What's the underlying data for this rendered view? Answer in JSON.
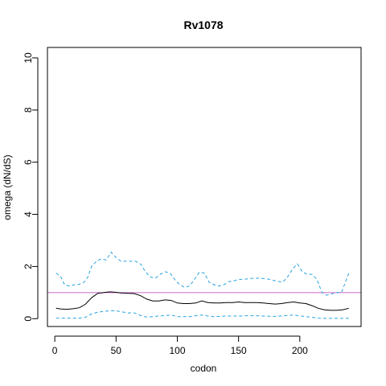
{
  "chart_data": {
    "type": "line",
    "title": "Rv1078",
    "xlabel": "codon",
    "ylabel": "omega (dN/dS)",
    "xlim": [
      -6,
      250
    ],
    "ylim": [
      -0.3,
      10.4
    ],
    "xticks": [
      0,
      50,
      100,
      150,
      200
    ],
    "yticks": [
      0,
      2,
      4,
      6,
      8,
      10
    ],
    "reference_line": {
      "y": 1,
      "color": "#cc66cc"
    },
    "series": [
      {
        "style": "solid",
        "color": "#000000",
        "x": [
          1,
          5,
          10,
          15,
          20,
          25,
          30,
          35,
          40,
          45,
          50,
          55,
          60,
          65,
          70,
          75,
          80,
          85,
          90,
          95,
          100,
          105,
          110,
          115,
          120,
          125,
          130,
          135,
          140,
          145,
          150,
          155,
          160,
          165,
          170,
          175,
          180,
          185,
          190,
          195,
          200,
          205,
          210,
          215,
          220,
          225,
          230,
          235,
          240
        ],
        "y": [
          0.4,
          0.37,
          0.36,
          0.38,
          0.42,
          0.55,
          0.8,
          0.97,
          1.0,
          1.03,
          1.01,
          0.98,
          0.97,
          0.96,
          0.88,
          0.75,
          0.68,
          0.68,
          0.72,
          0.7,
          0.6,
          0.58,
          0.58,
          0.6,
          0.68,
          0.62,
          0.6,
          0.6,
          0.62,
          0.62,
          0.64,
          0.62,
          0.62,
          0.62,
          0.6,
          0.58,
          0.56,
          0.58,
          0.62,
          0.64,
          0.6,
          0.58,
          0.5,
          0.4,
          0.34,
          0.32,
          0.32,
          0.34,
          0.4
        ]
      },
      {
        "style": "dashed",
        "color": "#29a3e0",
        "x": [
          1,
          5,
          8,
          12,
          16,
          20,
          24,
          27,
          30,
          34,
          38,
          42,
          46,
          50,
          54,
          58,
          62,
          66,
          70,
          74,
          78,
          82,
          86,
          90,
          94,
          98,
          102,
          106,
          110,
          114,
          118,
          122,
          126,
          130,
          134,
          138,
          142,
          146,
          150,
          156,
          162,
          168,
          174,
          180,
          186,
          190,
          194,
          198,
          202,
          206,
          210,
          214,
          218,
          222,
          226,
          230,
          234,
          238,
          240
        ],
        "y": [
          1.75,
          1.6,
          1.3,
          1.25,
          1.3,
          1.32,
          1.4,
          1.6,
          2.0,
          2.2,
          2.3,
          2.25,
          2.55,
          2.35,
          2.2,
          2.2,
          2.2,
          2.2,
          2.1,
          1.8,
          1.6,
          1.55,
          1.7,
          1.8,
          1.75,
          1.5,
          1.3,
          1.2,
          1.25,
          1.5,
          1.78,
          1.75,
          1.4,
          1.3,
          1.25,
          1.3,
          1.42,
          1.45,
          1.5,
          1.52,
          1.55,
          1.55,
          1.52,
          1.45,
          1.4,
          1.6,
          1.9,
          2.1,
          1.8,
          1.7,
          1.7,
          1.5,
          1.0,
          0.9,
          0.95,
          1.0,
          1.0,
          1.5,
          1.75
        ]
      },
      {
        "style": "dashed",
        "color": "#29a3e0",
        "x": [
          1,
          10,
          20,
          25,
          30,
          35,
          40,
          45,
          50,
          55,
          60,
          65,
          70,
          75,
          80,
          85,
          90,
          95,
          100,
          110,
          120,
          125,
          130,
          140,
          150,
          160,
          170,
          180,
          190,
          195,
          200,
          205,
          210,
          215,
          220,
          230,
          240
        ],
        "y": [
          0.02,
          0.02,
          0.02,
          0.05,
          0.18,
          0.25,
          0.28,
          0.3,
          0.3,
          0.26,
          0.22,
          0.22,
          0.12,
          0.06,
          0.08,
          0.1,
          0.12,
          0.14,
          0.08,
          0.08,
          0.14,
          0.1,
          0.08,
          0.1,
          0.1,
          0.12,
          0.1,
          0.09,
          0.12,
          0.14,
          0.11,
          0.08,
          0.05,
          0.02,
          0.01,
          0.01,
          0.01
        ]
      }
    ]
  }
}
